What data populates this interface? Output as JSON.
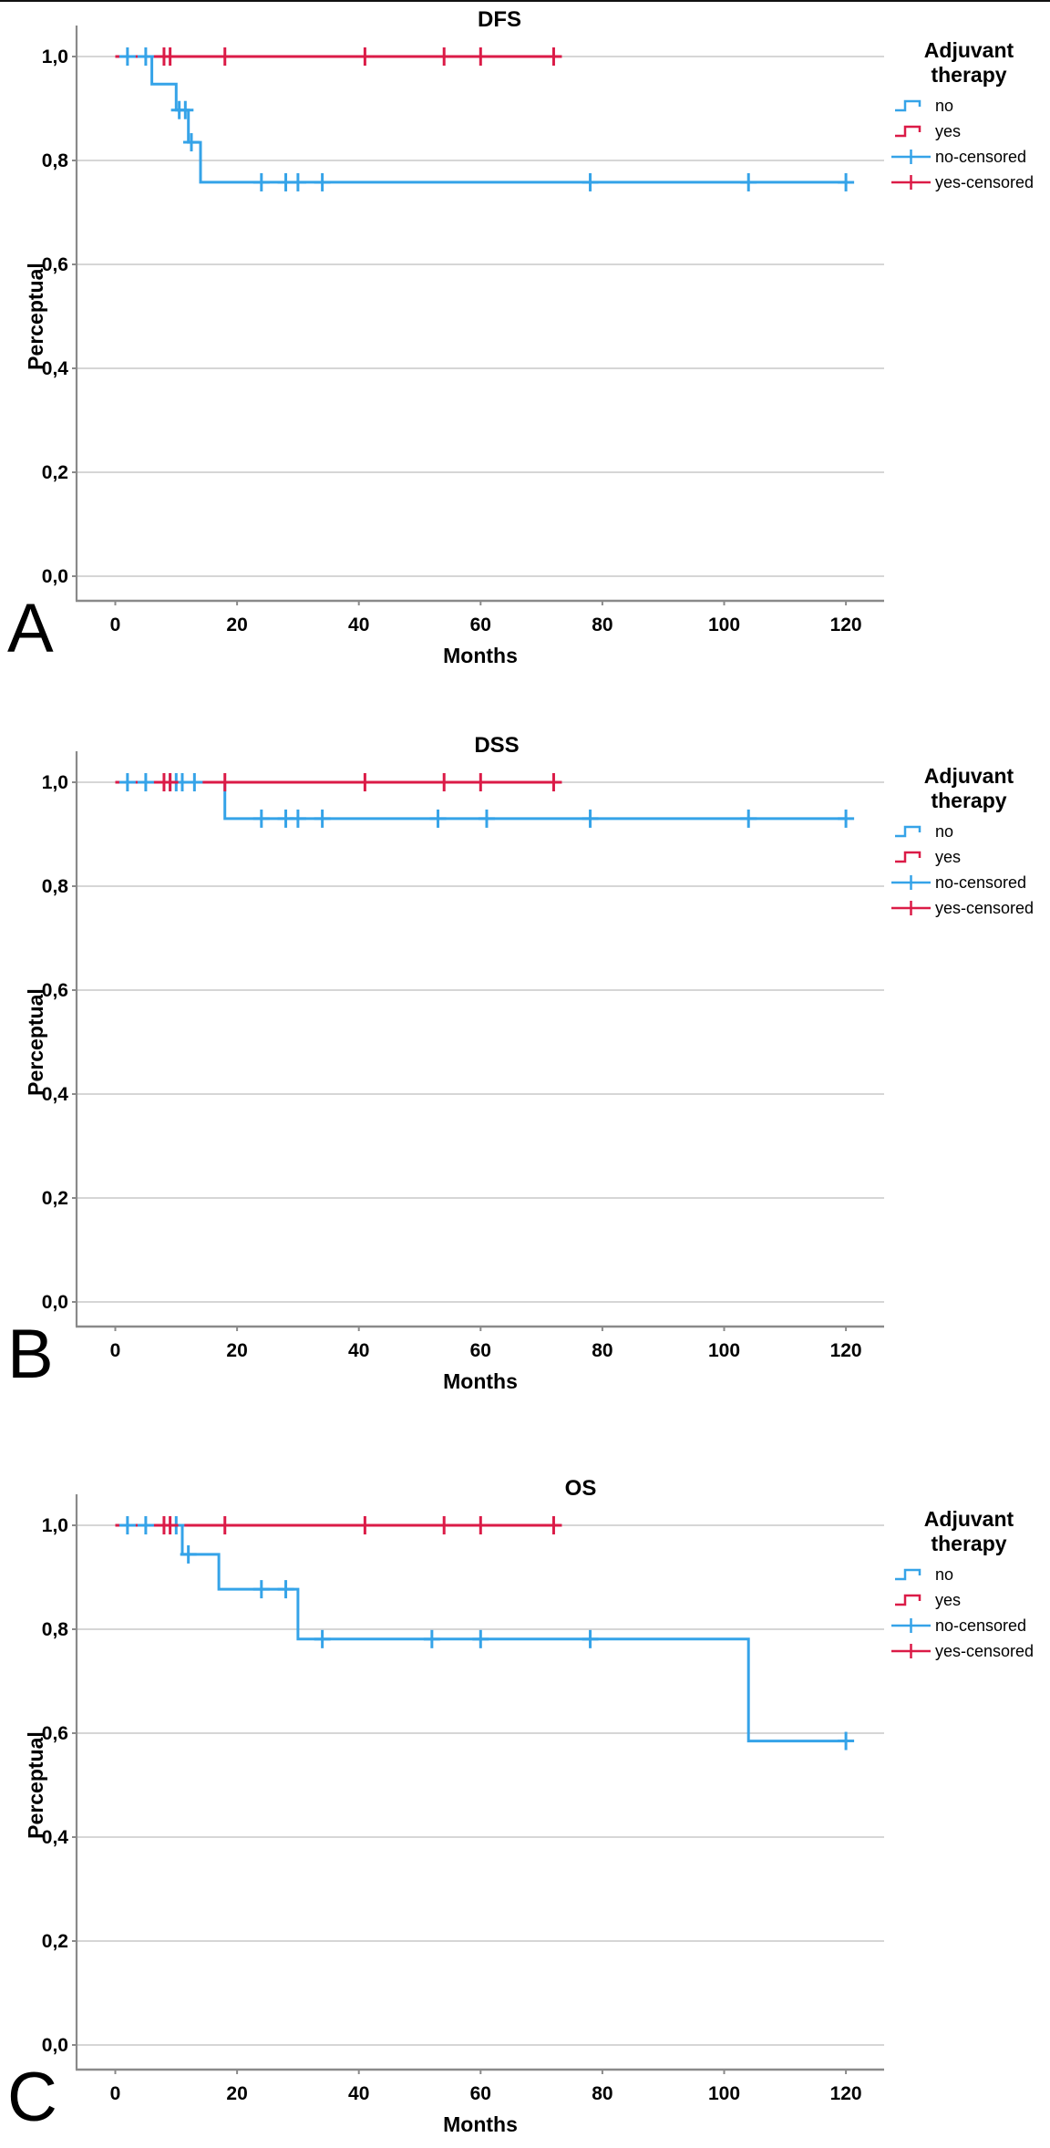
{
  "figure": {
    "y_axis_label": "Perceptual",
    "x_axis_label": "Months",
    "legend_title_line1": "Adjuvant",
    "legend_title_line2": "therapy",
    "panel_labels": [
      "A",
      "B",
      "C"
    ],
    "colors": {
      "no": "#35A3E8",
      "yes": "#DB1B47",
      "gridline": "#C8C8C8",
      "axis": "#8A8A8A",
      "text": "#000000"
    }
  },
  "chart_data": [
    {
      "type": "line",
      "subtype": "kaplan-meier-step",
      "title": "DFS",
      "panel_label": "A",
      "xlabel": "Months",
      "ylabel": "Perceptual",
      "xlim": [
        0,
        120
      ],
      "ylim": [
        0.0,
        1.0
      ],
      "grid": "horizontal",
      "x_ticks": [
        0,
        20,
        40,
        60,
        80,
        100,
        120
      ],
      "y_ticks": [
        {
          "label": "1,0",
          "value": 1.0
        },
        {
          "label": "0,8",
          "value": 0.8
        },
        {
          "label": "0,6",
          "value": 0.6
        },
        {
          "label": "0,4",
          "value": 0.4
        },
        {
          "label": "0,2",
          "value": 0.2
        },
        {
          "label": "0,0",
          "value": 0.0
        }
      ],
      "legend": {
        "title": "Adjuvant therapy",
        "position": "top-right-outside",
        "entries": [
          {
            "label": "no",
            "symbol": "step-line",
            "color": "no"
          },
          {
            "label": "yes",
            "symbol": "step-line",
            "color": "yes"
          },
          {
            "label": "no-censored",
            "symbol": "plus-line",
            "color": "no"
          },
          {
            "label": "yes-censored",
            "symbol": "plus-line",
            "color": "yes"
          }
        ]
      },
      "series": [
        {
          "name": "no",
          "color": "no",
          "step_points": [
            [
              0,
              1.0
            ],
            [
              6,
              1.0
            ],
            [
              6,
              0.947
            ],
            [
              10,
              0.947
            ],
            [
              10,
              0.897
            ],
            [
              12,
              0.897
            ],
            [
              12,
              0.835
            ],
            [
              14,
              0.835
            ],
            [
              14,
              0.758
            ],
            [
              120,
              0.758
            ]
          ],
          "censored": [
            [
              2,
              1.0
            ],
            [
              5,
              1.0
            ],
            [
              10.5,
              0.897
            ],
            [
              11.5,
              0.897
            ],
            [
              12.5,
              0.835
            ],
            [
              24,
              0.758
            ],
            [
              28,
              0.758
            ],
            [
              30,
              0.758
            ],
            [
              34,
              0.758
            ],
            [
              78,
              0.758
            ],
            [
              104,
              0.758
            ],
            [
              120,
              0.758
            ]
          ]
        },
        {
          "name": "yes",
          "color": "yes",
          "step_points": [
            [
              0,
              1.0
            ],
            [
              72,
              1.0
            ]
          ],
          "censored": [
            [
              8,
              1.0
            ],
            [
              9,
              1.0
            ],
            [
              18,
              1.0
            ],
            [
              41,
              1.0
            ],
            [
              54,
              1.0
            ],
            [
              60,
              1.0
            ],
            [
              72,
              1.0
            ]
          ]
        }
      ]
    },
    {
      "type": "line",
      "subtype": "kaplan-meier-step",
      "title": "DSS",
      "panel_label": "B",
      "xlabel": "Months",
      "ylabel": "Perceptual",
      "xlim": [
        0,
        120
      ],
      "ylim": [
        0.0,
        1.0
      ],
      "grid": "horizontal",
      "x_ticks": [
        0,
        20,
        40,
        60,
        80,
        100,
        120
      ],
      "y_ticks": [
        {
          "label": "1,0",
          "value": 1.0
        },
        {
          "label": "0,8",
          "value": 0.8
        },
        {
          "label": "0,6",
          "value": 0.6
        },
        {
          "label": "0,4",
          "value": 0.4
        },
        {
          "label": "0,2",
          "value": 0.2
        },
        {
          "label": "0,0",
          "value": 0.0
        }
      ],
      "legend": {
        "title": "Adjuvant therapy",
        "position": "top-right-outside",
        "entries": [
          {
            "label": "no",
            "symbol": "step-line",
            "color": "no"
          },
          {
            "label": "yes",
            "symbol": "step-line",
            "color": "yes"
          },
          {
            "label": "no-censored",
            "symbol": "plus-line",
            "color": "no"
          },
          {
            "label": "yes-censored",
            "symbol": "plus-line",
            "color": "yes"
          }
        ]
      },
      "series": [
        {
          "name": "no",
          "color": "no",
          "step_points": [
            [
              0,
              1.0
            ],
            [
              18,
              1.0
            ],
            [
              18,
              0.93
            ],
            [
              120,
              0.93
            ]
          ],
          "censored": [
            [
              2,
              1.0
            ],
            [
              5,
              1.0
            ],
            [
              9,
              1.0
            ],
            [
              10,
              1.0
            ],
            [
              11,
              1.0
            ],
            [
              13,
              1.0
            ],
            [
              24,
              0.93
            ],
            [
              28,
              0.93
            ],
            [
              30,
              0.93
            ],
            [
              34,
              0.93
            ],
            [
              53,
              0.93
            ],
            [
              61,
              0.93
            ],
            [
              78,
              0.93
            ],
            [
              104,
              0.93
            ],
            [
              120,
              0.93
            ]
          ]
        },
        {
          "name": "yes",
          "color": "yes",
          "step_points": [
            [
              0,
              1.0
            ],
            [
              72,
              1.0
            ]
          ],
          "censored": [
            [
              8,
              1.0
            ],
            [
              9,
              1.0
            ],
            [
              18,
              1.0
            ],
            [
              41,
              1.0
            ],
            [
              54,
              1.0
            ],
            [
              60,
              1.0
            ],
            [
              72,
              1.0
            ]
          ]
        }
      ]
    },
    {
      "type": "line",
      "subtype": "kaplan-meier-step",
      "title": "OS",
      "panel_label": "C",
      "xlabel": "Months",
      "ylabel": "Perceptual",
      "xlim": [
        0,
        120
      ],
      "ylim": [
        0.0,
        1.0
      ],
      "grid": "horizontal",
      "x_ticks": [
        0,
        20,
        40,
        60,
        80,
        100,
        120
      ],
      "y_ticks": [
        {
          "label": "1,0",
          "value": 1.0
        },
        {
          "label": "0,8",
          "value": 0.8
        },
        {
          "label": "0,6",
          "value": 0.6
        },
        {
          "label": "0,4",
          "value": 0.4
        },
        {
          "label": "0,2",
          "value": 0.2
        },
        {
          "label": "0,0",
          "value": 0.0
        }
      ],
      "legend": {
        "title": "Adjuvant therapy",
        "position": "top-right-outside",
        "entries": [
          {
            "label": "no",
            "symbol": "step-line",
            "color": "no"
          },
          {
            "label": "yes",
            "symbol": "step-line",
            "color": "yes"
          },
          {
            "label": "no-censored",
            "symbol": "plus-line",
            "color": "no"
          },
          {
            "label": "yes-censored",
            "symbol": "plus-line",
            "color": "yes"
          }
        ]
      },
      "series": [
        {
          "name": "no",
          "color": "no",
          "step_points": [
            [
              0,
              1.0
            ],
            [
              11,
              1.0
            ],
            [
              11,
              0.944
            ],
            [
              17,
              0.944
            ],
            [
              17,
              0.877
            ],
            [
              30,
              0.877
            ],
            [
              30,
              0.781
            ],
            [
              104,
              0.781
            ],
            [
              104,
              0.585
            ],
            [
              120,
              0.585
            ]
          ],
          "censored": [
            [
              2,
              1.0
            ],
            [
              5,
              1.0
            ],
            [
              10,
              1.0
            ],
            [
              12,
              0.944
            ],
            [
              24,
              0.877
            ],
            [
              28,
              0.877
            ],
            [
              34,
              0.781
            ],
            [
              52,
              0.781
            ],
            [
              60,
              0.781
            ],
            [
              78,
              0.781
            ],
            [
              120,
              0.585
            ]
          ]
        },
        {
          "name": "yes",
          "color": "yes",
          "step_points": [
            [
              0,
              1.0
            ],
            [
              72,
              1.0
            ]
          ],
          "censored": [
            [
              8,
              1.0
            ],
            [
              9,
              1.0
            ],
            [
              18,
              1.0
            ],
            [
              41,
              1.0
            ],
            [
              54,
              1.0
            ],
            [
              60,
              1.0
            ],
            [
              72,
              1.0
            ]
          ]
        }
      ]
    }
  ]
}
